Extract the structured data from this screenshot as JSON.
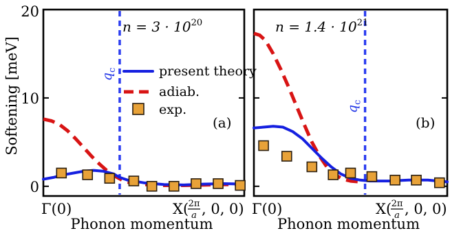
{
  "chart_data": {
    "ylabel": "Softening [meV]",
    "ylim": [
      -1.1,
      20
    ],
    "yticks": [
      0,
      10,
      20
    ],
    "xlim": [
      0,
      1
    ],
    "series_names": [
      "present theory",
      "adiab.",
      "exp."
    ],
    "panels": [
      {
        "type": "line",
        "density_base": "n = 3 · 10",
        "density_exp": "20",
        "label": "(a)",
        "qc_label": "q",
        "qc_sub": "c",
        "qc_x": 0.38,
        "xlabel": "Phonon momentum",
        "xtick_left": "Γ(0)",
        "xtick_right_main": "X(",
        "xtick_right_frac_num": "2π",
        "xtick_right_frac_den": "a",
        "xtick_right_tail": ", 0, 0)",
        "series": [
          {
            "name": "present theory",
            "x": [
              0,
              0.05,
              0.1,
              0.15,
              0.2,
              0.25,
              0.3,
              0.35,
              0.38,
              0.42,
              0.5,
              0.6,
              0.7,
              0.8,
              0.9,
              1.0
            ],
            "y": [
              0.8,
              1.0,
              1.3,
              1.5,
              1.7,
              1.8,
              1.7,
              1.4,
              1.0,
              0.7,
              0.4,
              0.2,
              0.15,
              0.25,
              0.3,
              0.25
            ]
          },
          {
            "name": "adiab.",
            "x": [
              0,
              0.04,
              0.08,
              0.12,
              0.16,
              0.2,
              0.24,
              0.28,
              0.32,
              0.36,
              0.4,
              0.45,
              0.5,
              0.6,
              0.7,
              0.8,
              0.9,
              1.0
            ],
            "y": [
              7.6,
              7.4,
              7.0,
              6.3,
              5.4,
              4.4,
              3.4,
              2.5,
              1.7,
              1.1,
              0.6,
              0.3,
              0.2,
              0.1,
              0.1,
              0.15,
              0.2,
              0.2
            ]
          },
          {
            "name": "exp.",
            "x": [
              0.09,
              0.22,
              0.33,
              0.45,
              0.54,
              0.65,
              0.76,
              0.87,
              0.98
            ],
            "y": [
              1.5,
              1.3,
              0.9,
              0.6,
              0.0,
              0.0,
              0.3,
              0.3,
              0.1
            ]
          }
        ]
      },
      {
        "type": "line",
        "density_base": "n = 1.4 · 10",
        "density_exp": "21",
        "label": "(b)",
        "qc_label": "q",
        "qc_sub": "c",
        "qc_x": 0.575,
        "xlabel": "Phonon momentum",
        "xtick_left": "Γ(0)",
        "xtick_right_main": "X(",
        "xtick_right_frac_num": "2π",
        "xtick_right_frac_den": "a",
        "xtick_right_tail": ", 0, 0)",
        "series": [
          {
            "name": "present theory",
            "x": [
              0,
              0.05,
              0.1,
              0.15,
              0.2,
              0.25,
              0.3,
              0.35,
              0.4,
              0.45,
              0.5,
              0.55,
              0.6,
              0.65,
              0.7,
              0.8,
              0.9,
              1.0
            ],
            "y": [
              6.6,
              6.7,
              6.8,
              6.7,
              6.2,
              5.4,
              4.3,
              3.2,
              2.2,
              1.4,
              0.9,
              0.7,
              0.6,
              0.6,
              0.6,
              0.7,
              0.7,
              0.5
            ]
          },
          {
            "name": "adiab.",
            "x": [
              0,
              0.03,
              0.06,
              0.1,
              0.14,
              0.18,
              0.22,
              0.26,
              0.3,
              0.34,
              0.38,
              0.42,
              0.46,
              0.5,
              0.55
            ],
            "y": [
              17.3,
              17.1,
              16.5,
              15.0,
              13.2,
              11.2,
              9.1,
              7.0,
              5.0,
              3.4,
              2.1,
              1.3,
              0.8,
              0.6,
              0.5
            ]
          },
          {
            "name": "exp.",
            "x": [
              0.05,
              0.17,
              0.3,
              0.41,
              0.5,
              0.61,
              0.73,
              0.84,
              0.96
            ],
            "y": [
              4.6,
              3.4,
              2.2,
              1.3,
              1.5,
              1.1,
              0.7,
              0.7,
              0.4
            ]
          }
        ]
      }
    ]
  }
}
